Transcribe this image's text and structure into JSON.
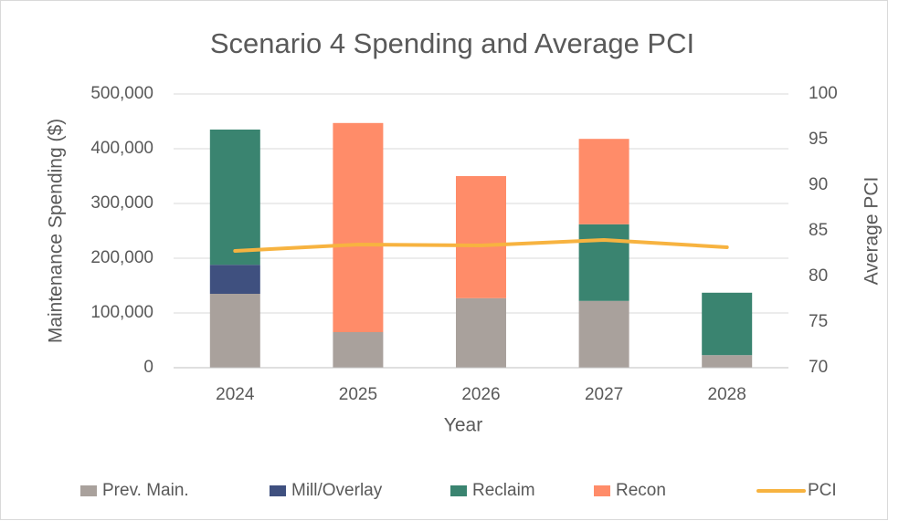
{
  "chart_data": {
    "type": "bar",
    "title": "Scenario 4 Spending and Average PCI",
    "x_label": "Year",
    "y_label": "Maintenance Spending ($)",
    "y2_label": "Average PCI",
    "categories": [
      "2024",
      "2025",
      "2026",
      "2027",
      "2028"
    ],
    "series": [
      {
        "name": "Prev. Main.",
        "color": "#a9a19c",
        "values": [
          135000,
          65000,
          127000,
          122000,
          23000
        ]
      },
      {
        "name": "Mill/Overlay",
        "color": "#3f507f",
        "values": [
          53000,
          0,
          0,
          0,
          0
        ]
      },
      {
        "name": "Reclaim",
        "color": "#3a8470",
        "values": [
          247000,
          0,
          0,
          140000,
          114000
        ]
      },
      {
        "name": "Recon",
        "color": "#ff8c69",
        "values": [
          0,
          382000,
          223000,
          156000,
          0
        ]
      },
      {
        "name": "PCI",
        "color": "#f7b340",
        "type": "line",
        "axis": "y2",
        "values": [
          82.8,
          83.5,
          83.4,
          84.0,
          83.2
        ]
      }
    ],
    "ylim": [
      0,
      500000
    ],
    "yticks": [
      0,
      {
        "value": 100000,
        "label": "100,000"
      },
      {
        "value": 200000,
        "label": "200,000"
      },
      {
        "value": 300000,
        "label": "300,000"
      },
      {
        "value": 400000,
        "label": "400,000"
      },
      {
        "value": 500000,
        "label": "500,000"
      }
    ],
    "y2lim": [
      70,
      100
    ],
    "y2ticks": [
      70,
      75,
      80,
      85,
      90,
      95,
      100
    ],
    "grid": true,
    "legend": "bottom"
  }
}
